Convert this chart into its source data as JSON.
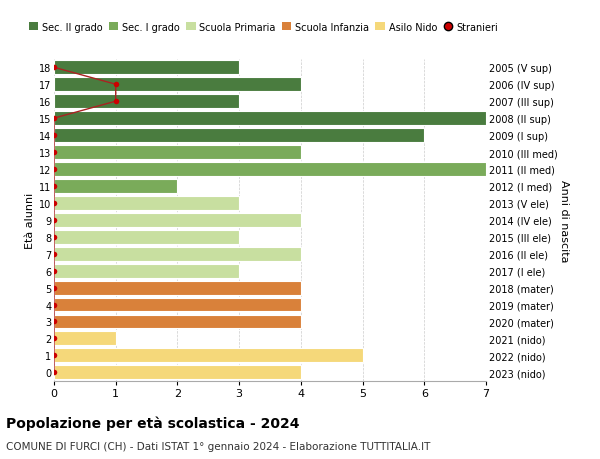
{
  "ages": [
    18,
    17,
    16,
    15,
    14,
    13,
    12,
    11,
    10,
    9,
    8,
    7,
    6,
    5,
    4,
    3,
    2,
    1,
    0
  ],
  "right_labels": [
    "2005 (V sup)",
    "2006 (IV sup)",
    "2007 (III sup)",
    "2008 (II sup)",
    "2009 (I sup)",
    "2010 (III med)",
    "2011 (II med)",
    "2012 (I med)",
    "2013 (V ele)",
    "2014 (IV ele)",
    "2015 (III ele)",
    "2016 (II ele)",
    "2017 (I ele)",
    "2018 (mater)",
    "2019 (mater)",
    "2020 (mater)",
    "2021 (nido)",
    "2022 (nido)",
    "2023 (nido)"
  ],
  "bar_values": [
    3,
    4,
    3,
    7,
    6,
    4,
    7,
    2,
    3,
    4,
    3,
    4,
    3,
    4,
    4,
    4,
    1,
    5,
    4
  ],
  "bar_colors": [
    "#4a7c3f",
    "#4a7c3f",
    "#4a7c3f",
    "#4a7c3f",
    "#4a7c3f",
    "#7aab5a",
    "#7aab5a",
    "#7aab5a",
    "#c8dfa0",
    "#c8dfa0",
    "#c8dfa0",
    "#c8dfa0",
    "#c8dfa0",
    "#d9813a",
    "#d9813a",
    "#d9813a",
    "#f5d87a",
    "#f5d87a",
    "#f5d87a"
  ],
  "stranieri_ages": [
    18,
    17,
    16,
    15,
    14,
    13,
    12,
    11,
    10,
    9,
    8,
    7,
    6,
    5,
    4,
    3,
    2,
    1,
    0
  ],
  "stranieri_values": [
    0,
    1,
    1,
    0,
    0,
    0,
    0,
    0,
    0,
    0,
    0,
    0,
    0,
    0,
    0,
    0,
    0,
    0,
    0
  ],
  "legend_labels": [
    "Sec. II grado",
    "Sec. I grado",
    "Scuola Primaria",
    "Scuola Infanzia",
    "Asilo Nido",
    "Stranieri"
  ],
  "legend_colors": [
    "#4a7c3f",
    "#7aab5a",
    "#c8dfa0",
    "#d9813a",
    "#f5d87a",
    "#cc0000"
  ],
  "title": "Popolazione per età scolastica - 2024",
  "subtitle": "COMUNE DI FURCI (CH) - Dati ISTAT 1° gennaio 2024 - Elaborazione TUTTITALIA.IT",
  "ylabel_left": "Età alunni",
  "ylabel_right": "Anni di nascita",
  "xlim": [
    0,
    7
  ],
  "background_color": "#ffffff",
  "plot_bg_color": "#ffffff",
  "grid_color": "#cccccc"
}
